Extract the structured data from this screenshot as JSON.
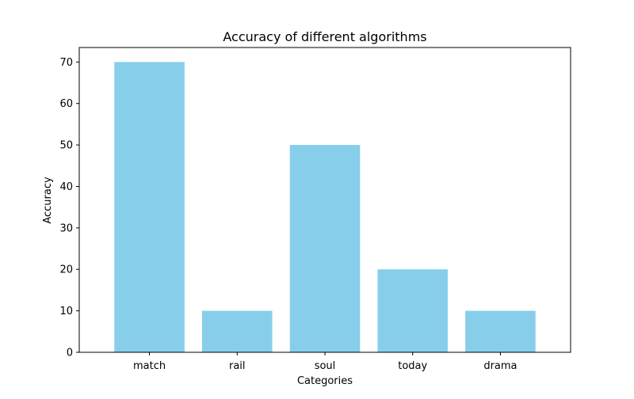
{
  "chart_data": {
    "type": "bar",
    "title": "Accuracy of different algorithms",
    "xlabel": "Categories",
    "ylabel": "Accuracy",
    "categories": [
      "match",
      "rail",
      "soul",
      "today",
      "drama"
    ],
    "values": [
      70,
      10,
      50,
      20,
      10
    ],
    "ylim": [
      0,
      73.5
    ],
    "yticks": [
      0,
      10,
      20,
      30,
      40,
      50,
      60,
      70
    ],
    "grid": false,
    "bar_color": "#87CEEB"
  }
}
